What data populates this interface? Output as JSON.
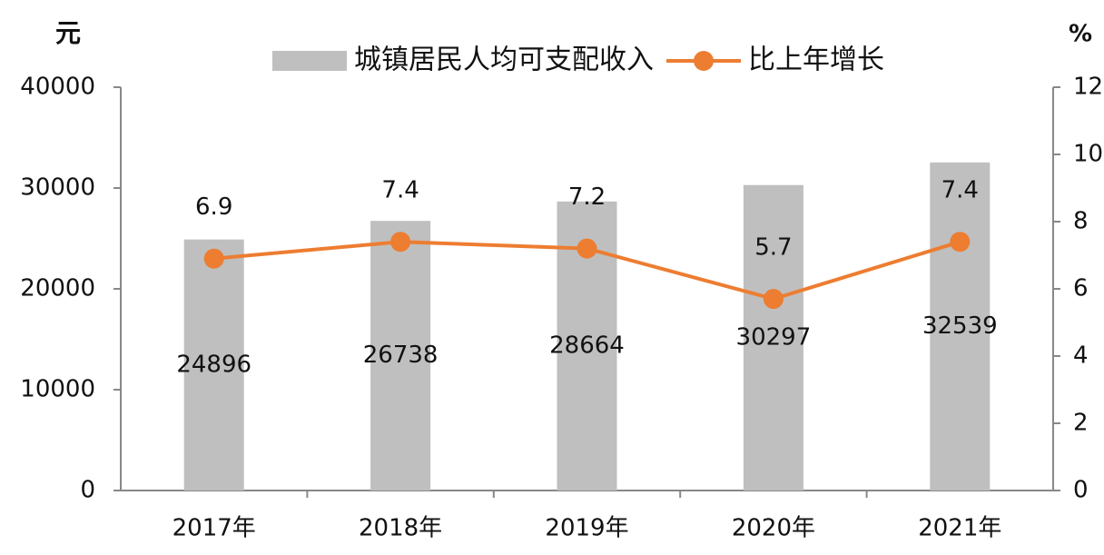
{
  "chart_data": {
    "type": "bar-line",
    "y_unit": "元",
    "y2_unit": "%",
    "categories": [
      "2017年",
      "2018年",
      "2019年",
      "2020年",
      "2021年"
    ],
    "series": [
      {
        "name": "城镇居民人均可支配收入",
        "type": "bar",
        "color": "#bfbfbf",
        "values": [
          24896,
          26738,
          28664,
          30297,
          32539
        ]
      },
      {
        "name": "比上年增长",
        "type": "line",
        "color": "#ed7d31",
        "axis": "y2",
        "values": [
          6.9,
          7.4,
          7.2,
          5.7,
          7.4
        ]
      }
    ],
    "ylim": [
      0,
      40000
    ],
    "yticks": [
      0,
      10000,
      20000,
      30000,
      40000
    ],
    "y2lim": [
      0,
      12
    ],
    "y2ticks": [
      0,
      2,
      4,
      6,
      8,
      10,
      12
    ],
    "legend": "top"
  }
}
